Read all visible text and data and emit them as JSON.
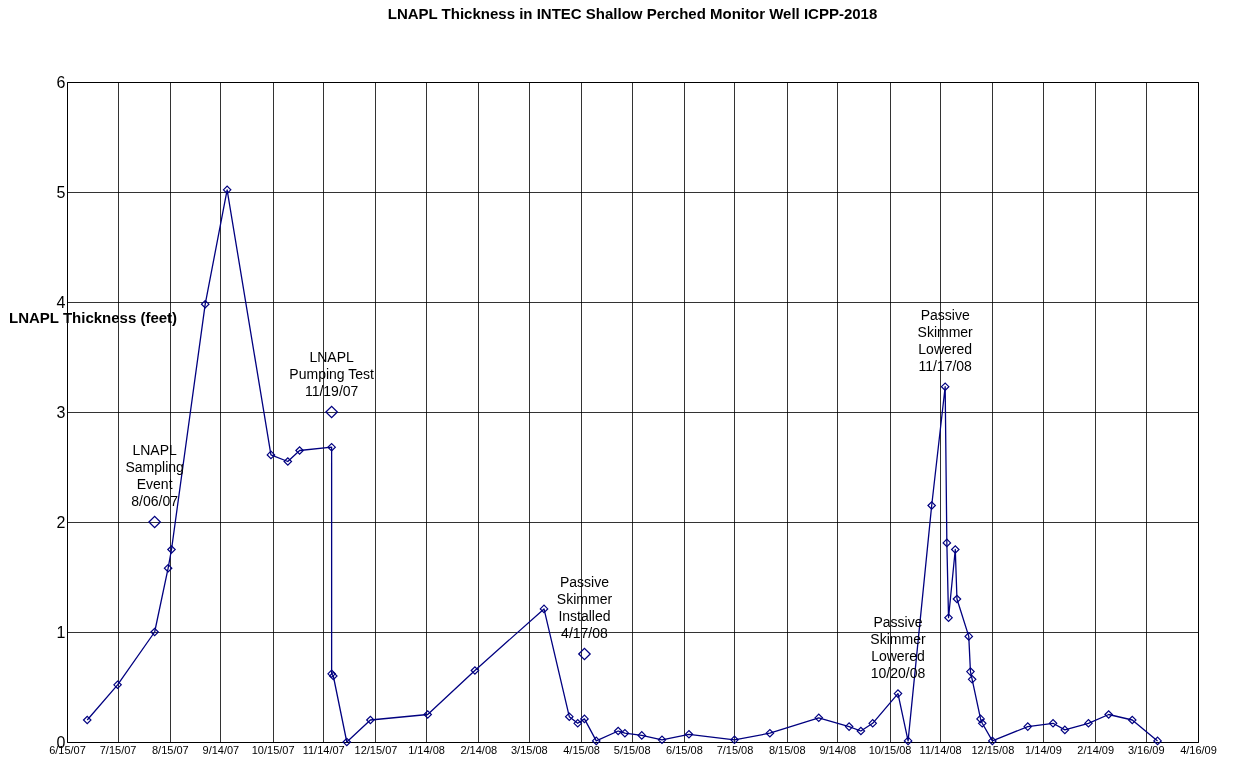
{
  "chart_data": {
    "type": "line",
    "title": "LNAPL Thickness in INTEC Shallow Perched Monitor Well ICPP-2018",
    "ylabel": "LNAPL Thickness (feet)",
    "xlim": [
      "2007-06-15",
      "2009-04-16"
    ],
    "xticks": [
      {
        "value": "2007-06-15",
        "label": "6/15/07"
      },
      {
        "value": "2007-07-15",
        "label": "7/15/07"
      },
      {
        "value": "2007-08-15",
        "label": "8/15/07"
      },
      {
        "value": "2007-09-14",
        "label": "9/14/07"
      },
      {
        "value": "2007-10-15",
        "label": "10/15/07"
      },
      {
        "value": "2007-11-14",
        "label": "11/14/07"
      },
      {
        "value": "2007-12-15",
        "label": "12/15/07"
      },
      {
        "value": "2008-01-14",
        "label": "1/14/08"
      },
      {
        "value": "2008-02-14",
        "label": "2/14/08"
      },
      {
        "value": "2008-03-15",
        "label": "3/15/08"
      },
      {
        "value": "2008-04-15",
        "label": "4/15/08"
      },
      {
        "value": "2008-05-15",
        "label": "5/15/08"
      },
      {
        "value": "2008-06-15",
        "label": "6/15/08"
      },
      {
        "value": "2008-07-15",
        "label": "7/15/08"
      },
      {
        "value": "2008-08-15",
        "label": "8/15/08"
      },
      {
        "value": "2008-09-14",
        "label": "9/14/08"
      },
      {
        "value": "2008-10-15",
        "label": "10/15/08"
      },
      {
        "value": "2008-11-14",
        "label": "11/14/08"
      },
      {
        "value": "2008-12-15",
        "label": "12/15/08"
      },
      {
        "value": "2009-01-14",
        "label": "1/14/09"
      },
      {
        "value": "2009-02-14",
        "label": "2/14/09"
      },
      {
        "value": "2009-03-16",
        "label": "3/16/09"
      },
      {
        "value": "2009-04-16",
        "label": "4/16/09"
      }
    ],
    "ylim": [
      0,
      6
    ],
    "yticks": [
      0,
      1,
      2,
      3,
      4,
      5,
      6
    ],
    "grid": true,
    "marker": "diamond",
    "line_style": "solid",
    "series": [
      {
        "type": "line",
        "color": "#000080",
        "x": [
          "2007-06-27",
          "2007-07-15",
          "2007-08-06",
          "2007-08-14",
          "2007-08-16",
          "2007-09-05",
          "2007-09-18",
          "2007-10-14",
          "2007-10-24",
          "2007-10-31",
          "2007-11-19",
          "2007-11-19",
          "2007-11-20",
          "2007-11-28",
          "2007-12-12",
          "2008-01-15",
          "2008-02-12",
          "2008-03-24",
          "2008-04-08",
          "2008-04-13",
          "2008-04-17",
          "2008-04-24",
          "2008-05-07",
          "2008-05-11",
          "2008-05-21",
          "2008-06-02",
          "2008-06-18",
          "2008-07-15",
          "2008-08-05",
          "2008-09-03",
          "2008-09-21",
          "2008-09-28",
          "2008-10-05",
          "2008-10-20",
          "2008-10-26",
          "2008-11-09",
          "2008-11-17",
          "2008-11-18",
          "2008-11-19",
          "2008-11-23",
          "2008-11-24",
          "2008-12-01",
          "2008-12-02",
          "2008-12-03",
          "2008-12-08",
          "2008-12-09",
          "2008-12-15",
          "2009-01-05",
          "2009-01-20",
          "2009-01-27",
          "2009-02-10",
          "2009-02-22",
          "2009-03-08",
          "2009-03-23"
        ],
        "values": [
          0.2,
          0.52,
          1.0,
          1.58,
          1.75,
          3.98,
          5.02,
          2.61,
          2.55,
          2.65,
          2.68,
          0.62,
          0.6,
          0,
          0.2,
          0.25,
          0.65,
          1.21,
          0.23,
          0.17,
          0.21,
          0.01,
          0.1,
          0.08,
          0.06,
          0.02,
          0.07,
          0.02,
          0.08,
          0.22,
          0.14,
          0.1,
          0.17,
          0.44,
          0.01,
          2.15,
          3.23,
          1.81,
          1.13,
          1.75,
          1.3,
          0.96,
          0.64,
          0.57,
          0.21,
          0.17,
          0.01,
          0.14,
          0.17,
          0.11,
          0.17,
          0.25,
          0.2,
          0.01
        ]
      },
      {
        "type": "scatter",
        "color": "#000080",
        "x": [
          "2007-08-06",
          "2007-11-19",
          "2008-04-17"
        ],
        "values": [
          2.0,
          3.0,
          0.8
        ]
      }
    ],
    "annotations": [
      {
        "text": "LNAPL\nSampling\nEvent\n8/06/07",
        "x": "2007-08-06",
        "y": 2.0
      },
      {
        "text": "LNAPL\nPumping Test\n11/19/07",
        "x": "2007-11-19",
        "y": 3.0
      },
      {
        "text": "Passive\nSkimmer\nInstalled\n4/17/08",
        "x": "2008-04-17",
        "y": 0.8
      },
      {
        "text": "Passive\nSkimmer\nLowered\n10/20/08",
        "x": "2008-10-20",
        "y": 0.44
      },
      {
        "text": "Passive\nSkimmer\nLowered\n11/17/08",
        "x": "2008-11-17",
        "y": 3.23
      }
    ]
  }
}
